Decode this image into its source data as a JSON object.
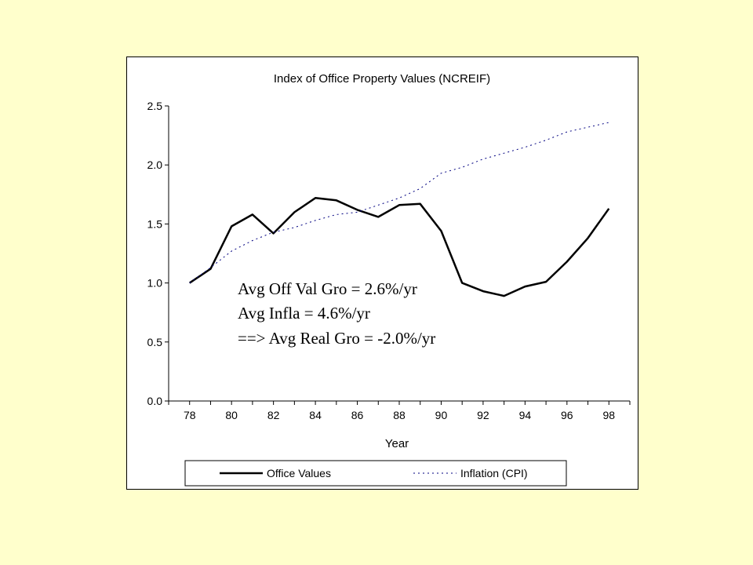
{
  "chart_data": {
    "type": "line",
    "title": "Index of Office Property Values (NCREIF)",
    "xlabel": "Year",
    "ylabel": "",
    "x": [
      78,
      79,
      80,
      81,
      82,
      83,
      84,
      85,
      86,
      87,
      88,
      89,
      90,
      91,
      92,
      93,
      94,
      95,
      96,
      97,
      98
    ],
    "x_tick_labels": [
      "78",
      "80",
      "82",
      "84",
      "86",
      "88",
      "90",
      "92",
      "94",
      "96",
      "98"
    ],
    "y_tick_labels": [
      "0.0",
      "0.5",
      "1.0",
      "1.5",
      "2.0",
      "2.5"
    ],
    "xlim": [
      77,
      99
    ],
    "ylim": [
      0,
      2.5
    ],
    "grid": false,
    "legend_position": "bottom",
    "series": [
      {
        "name": "Office Values",
        "style": "solid",
        "color": "#000000",
        "values": [
          1.0,
          1.12,
          1.48,
          1.58,
          1.42,
          1.6,
          1.72,
          1.7,
          1.62,
          1.56,
          1.66,
          1.67,
          1.44,
          1.0,
          0.93,
          0.89,
          0.97,
          1.01,
          1.18,
          1.38,
          1.63
        ]
      },
      {
        "name": "Inflation (CPI)",
        "style": "dotted",
        "color": "#000080",
        "values": [
          1.0,
          1.13,
          1.27,
          1.36,
          1.43,
          1.47,
          1.53,
          1.58,
          1.6,
          1.66,
          1.72,
          1.8,
          1.93,
          1.98,
          2.05,
          2.1,
          2.15,
          2.21,
          2.28,
          2.32,
          2.36
        ]
      }
    ],
    "annotations": [
      "Avg Off Val Gro = 2.6%/yr",
      "Avg Infla = 4.6%/yr",
      "==> Avg Real Gro = -2.0%/yr"
    ]
  }
}
